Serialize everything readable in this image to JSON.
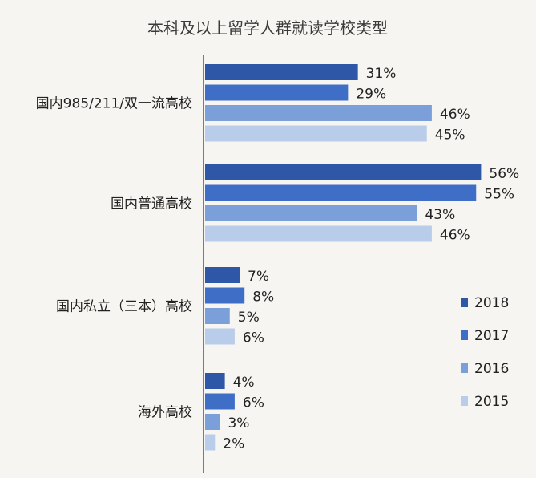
{
  "chart_data": {
    "type": "bar",
    "orientation": "horizontal",
    "title": "本科及以上留学人群就读学校类型",
    "xlabel": "",
    "ylabel": "",
    "categories": [
      "国内985/211/双一流高校",
      "国内普通高校",
      "国内私立（三本）高校",
      "海外高校"
    ],
    "series": [
      {
        "name": "2018",
        "values": [
          31,
          56,
          7,
          4
        ],
        "labels": [
          "31%",
          "56%",
          "7%",
          "4%"
        ],
        "color": "#2e57a8"
      },
      {
        "name": "2017",
        "values": [
          29,
          55,
          8,
          6
        ],
        "labels": [
          "29%",
          "55%",
          "8%",
          "6%"
        ],
        "color": "#3f6ec6"
      },
      {
        "name": "2016",
        "values": [
          46,
          43,
          5,
          3
        ],
        "labels": [
          "46%",
          "43%",
          "5%",
          "3%"
        ],
        "color": "#7a9fd9"
      },
      {
        "name": "2015",
        "values": [
          45,
          46,
          6,
          2
        ],
        "labels": [
          "45%",
          "46%",
          "6%",
          "2%"
        ],
        "color": "#b9cdea"
      }
    ],
    "xlim": [
      0,
      60
    ],
    "grid": false,
    "legend": "right"
  }
}
